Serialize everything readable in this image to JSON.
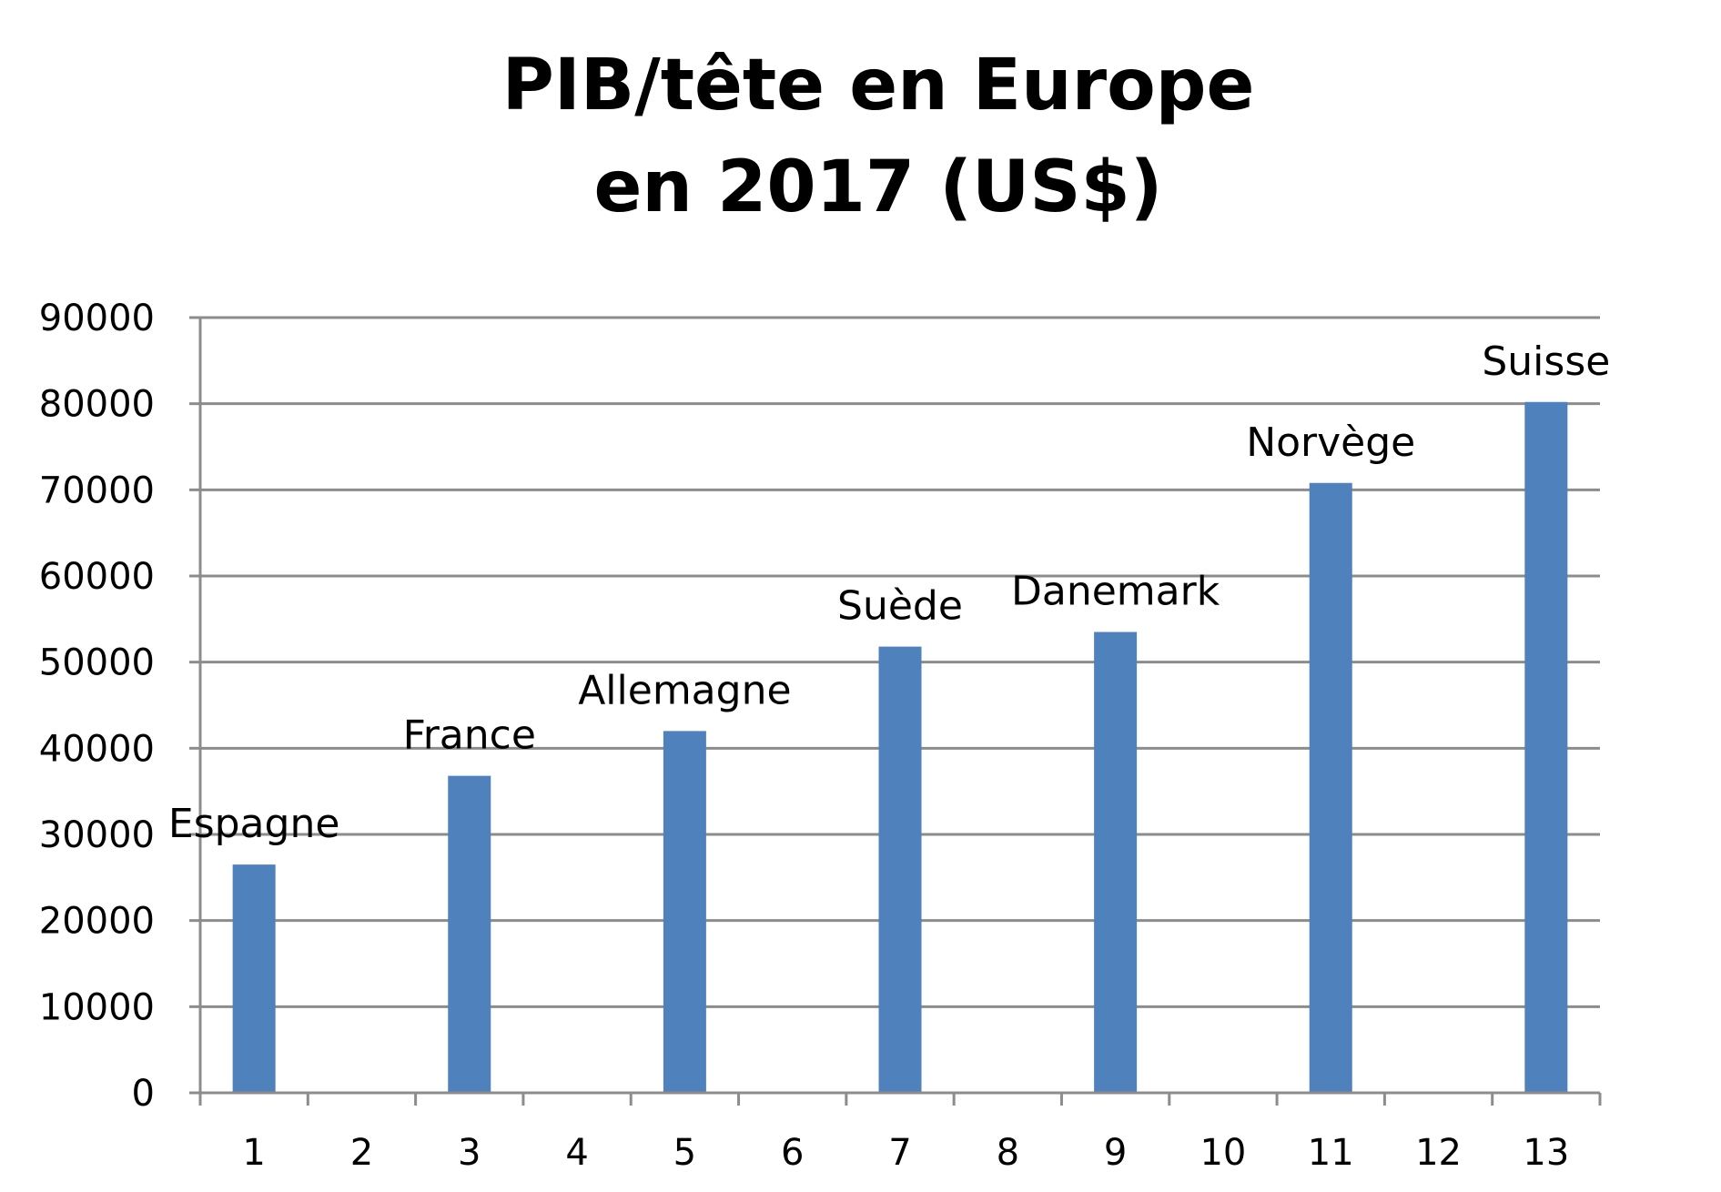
{
  "chart_data": {
    "type": "bar",
    "title_lines": [
      "PIB/tête en Europe",
      "en 2017 (US$)"
    ],
    "categories": [
      "1",
      "2",
      "3",
      "4",
      "5",
      "6",
      "7",
      "8",
      "9",
      "10",
      "11",
      "12",
      "13"
    ],
    "series": [
      {
        "values": [
          26500,
          null,
          36800,
          null,
          42000,
          null,
          51800,
          null,
          53500,
          null,
          70800,
          null,
          80200
        ],
        "color": "#4f81bd"
      }
    ],
    "bar_labels": [
      "Espagne",
      "",
      "France",
      "",
      "Allemagne",
      "",
      "Suède",
      "",
      "Danemark",
      "",
      "Norvège",
      "",
      "Suisse"
    ],
    "ylim": [
      0,
      90000
    ],
    "yticks": [
      0,
      10000,
      20000,
      30000,
      40000,
      50000,
      60000,
      70000,
      80000,
      90000
    ],
    "grid": true,
    "gridline_color": "#8c8c8c",
    "axis_color": "#8c8c8c",
    "xlabel": "",
    "ylabel": ""
  }
}
